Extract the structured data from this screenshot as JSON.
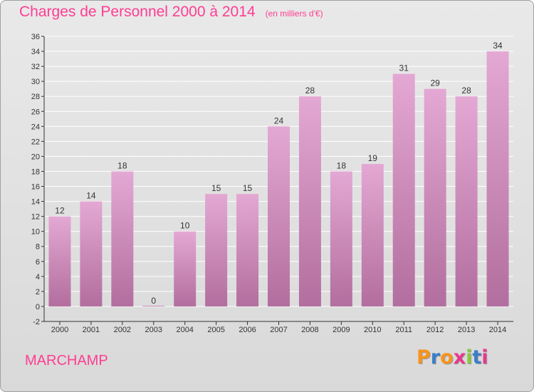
{
  "title": "Charges de Personnel 2000 à 2014",
  "subtitle": "(en milliers d'€)",
  "commune": "MARCHAMP",
  "brand": {
    "text": "Proxiti",
    "colors": [
      "#f7941d",
      "#3b7ec8",
      "#f7941d",
      "#e8388a",
      "#8dc63f",
      "#3b7ec8",
      "#e8388a"
    ]
  },
  "colors": {
    "title": "#ff3d92",
    "bar_top": "#e4a8d4",
    "bar_bottom": "#b26e9e",
    "grid": "#ffffff",
    "axis": "#333333"
  },
  "chart_data": {
    "type": "bar",
    "categories": [
      "2000",
      "2001",
      "2002",
      "2003",
      "2004",
      "2005",
      "2006",
      "2007",
      "2008",
      "2009",
      "2010",
      "2011",
      "2012",
      "2013",
      "2014"
    ],
    "values": [
      12,
      14,
      18,
      0,
      10,
      15,
      15,
      24,
      28,
      18,
      19,
      31,
      29,
      28,
      34
    ],
    "ylim": [
      -2,
      36
    ],
    "yticks": [
      -2,
      0,
      2,
      4,
      6,
      8,
      10,
      12,
      14,
      16,
      18,
      20,
      22,
      24,
      26,
      28,
      30,
      32,
      34,
      36
    ],
    "grid": true,
    "data_labels": true
  }
}
